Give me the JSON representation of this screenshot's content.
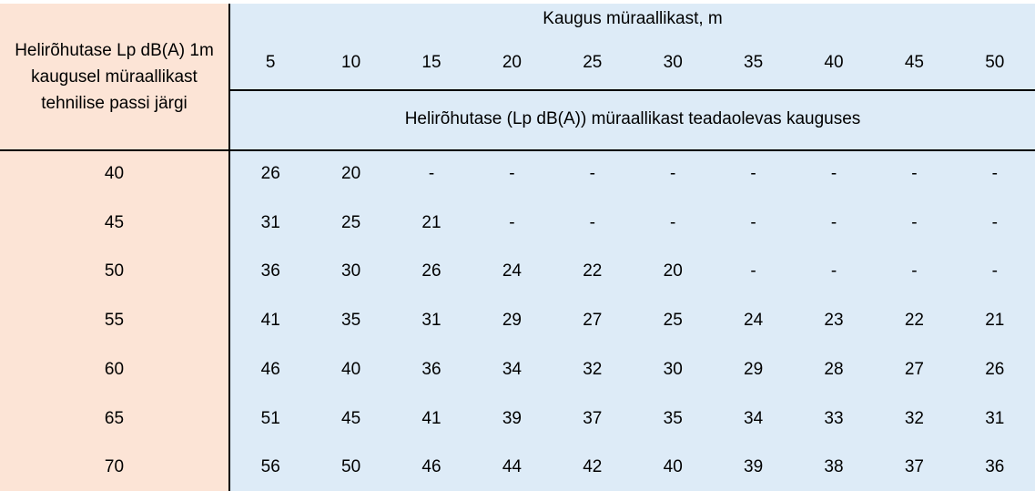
{
  "row_header": "Helirõhutase Lp dB(A) 1m kaugusel müraallikast tehnilise passi järgi",
  "distance_header": "Kaugus müraallikast, m",
  "distances": [
    "5",
    "10",
    "15",
    "20",
    "25",
    "30",
    "35",
    "40",
    "45",
    "50"
  ],
  "subheader": "Helirõhutase (Lp dB(A)) müraallikast teadaolevas kauguses",
  "rows": [
    {
      "level": "40",
      "values": [
        "26",
        "20",
        "-",
        "-",
        "-",
        "-",
        "-",
        "-",
        "-",
        "-"
      ]
    },
    {
      "level": "45",
      "values": [
        "31",
        "25",
        "21",
        "-",
        "-",
        "-",
        "-",
        "-",
        "-",
        "-"
      ]
    },
    {
      "level": "50",
      "values": [
        "36",
        "30",
        "26",
        "24",
        "22",
        "20",
        "-",
        "-",
        "-",
        "-"
      ]
    },
    {
      "level": "55",
      "values": [
        "41",
        "35",
        "31",
        "29",
        "27",
        "25",
        "24",
        "23",
        "22",
        "21"
      ]
    },
    {
      "level": "60",
      "values": [
        "46",
        "40",
        "36",
        "34",
        "32",
        "30",
        "29",
        "28",
        "27",
        "26"
      ]
    },
    {
      "level": "65",
      "values": [
        "51",
        "45",
        "41",
        "39",
        "37",
        "35",
        "34",
        "33",
        "32",
        "31"
      ]
    },
    {
      "level": "70",
      "values": [
        "56",
        "50",
        "46",
        "44",
        "42",
        "40",
        "39",
        "38",
        "37",
        "36"
      ]
    }
  ],
  "colors": {
    "left_column": "#fce4d6",
    "data_area": "#ddebf7"
  }
}
